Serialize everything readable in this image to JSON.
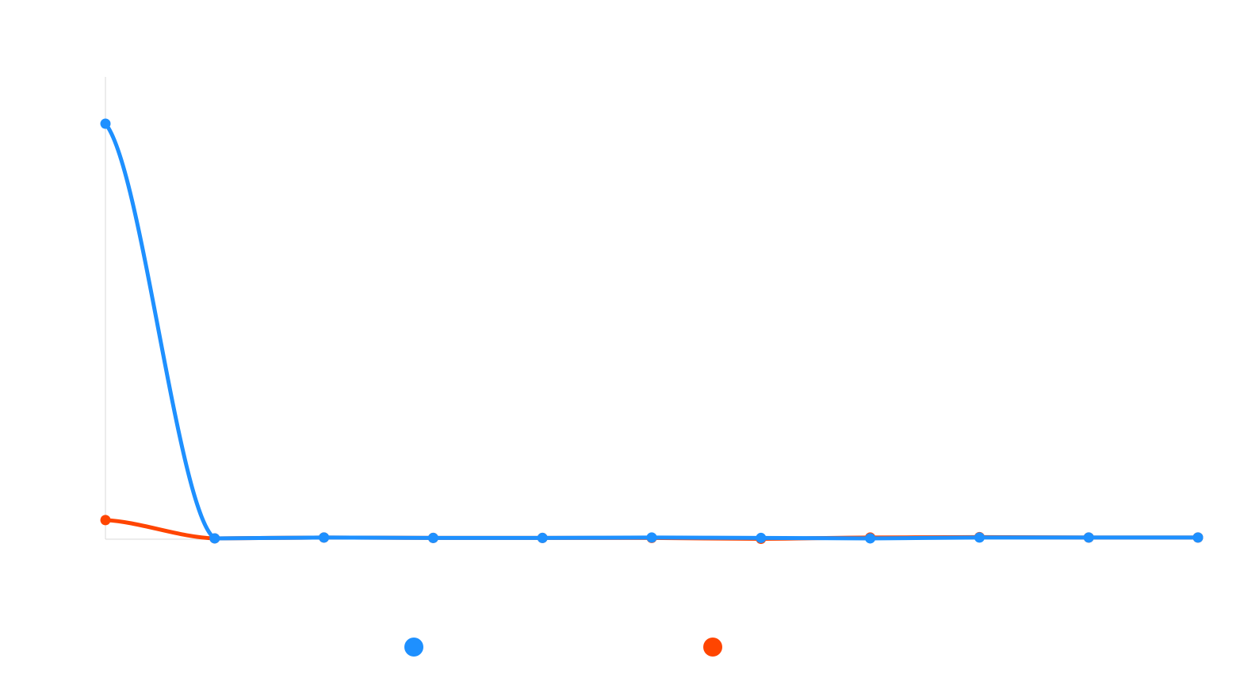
{
  "chart_data": {
    "type": "line",
    "title": "",
    "xlabel": "",
    "ylabel": "",
    "categories": [
      "",
      "",
      "",
      "",
      "",
      "",
      "",
      "",
      "",
      "",
      ""
    ],
    "ylim": [
      0,
      100
    ],
    "grid": false,
    "legend_position": "bottom",
    "series": [
      {
        "name": "",
        "color": "#1E90FF",
        "values": [
          100,
          0.2,
          0.4,
          0.3,
          0.3,
          0.4,
          0.3,
          0.2,
          0.4,
          0.4,
          0.4
        ]
      },
      {
        "name": "",
        "color": "#FF4500",
        "values": [
          4.6,
          0.2,
          0.4,
          0.3,
          0.3,
          0.3,
          0.1,
          0.4,
          0.5,
          0.4,
          0.4
        ]
      }
    ]
  }
}
